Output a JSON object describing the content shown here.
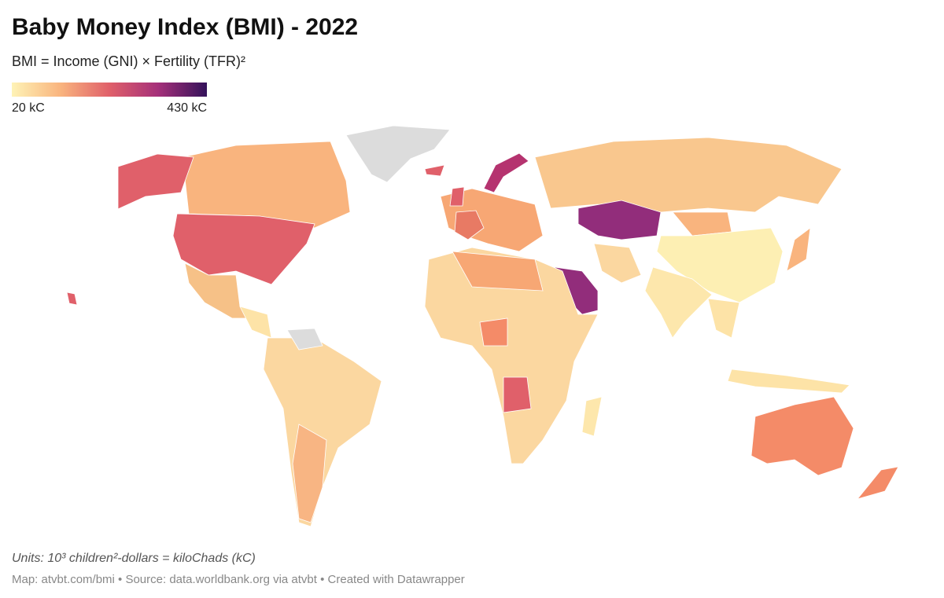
{
  "header": {
    "title": "Baby Money Index (BMI) - 2022",
    "subtitle": "BMI = Income (GNI) × Fertility (TFR)²"
  },
  "legend": {
    "range": [
      20,
      430
    ],
    "ticks": [
      {
        "value": 20,
        "label": "20 kC"
      },
      {
        "value": 430,
        "label": "430 kC"
      }
    ],
    "colors": [
      "#fef3b6",
      "#f9b47e",
      "#e0606a",
      "#a5307a",
      "#34125a"
    ]
  },
  "footer": {
    "units": "Units: 10³ children²-dollars = kiloChads (kC)",
    "source": "Map: atvbt.com/bmi • Source: data.worldbank.org via atvbt • Created with Datawrapper"
  }
}
